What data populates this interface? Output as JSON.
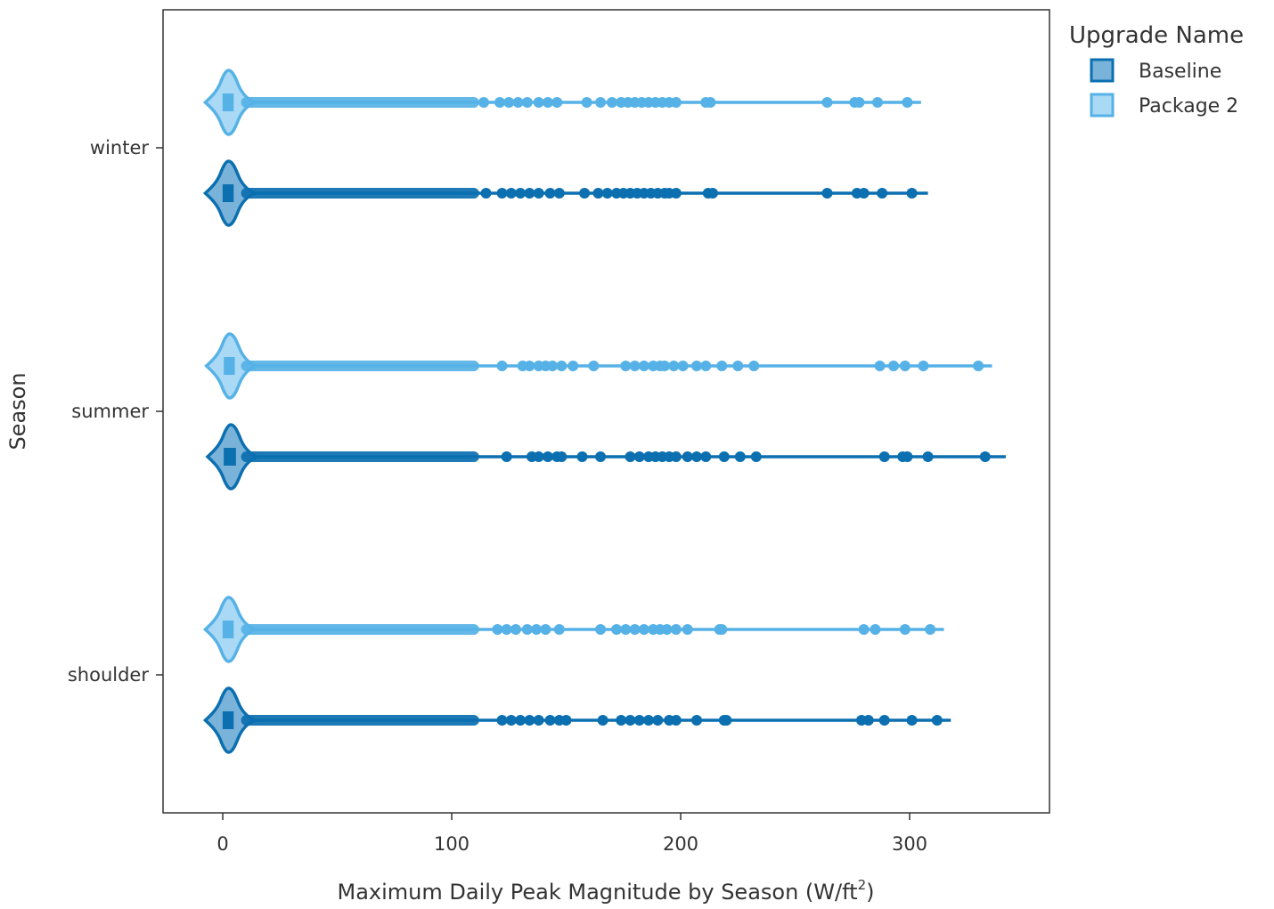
{
  "chart_data": {
    "type": "violin",
    "orientation": "horizontal",
    "title": "",
    "xlabel": "Maximum Daily Peak Magnitude by Season (W/ft",
    "xlabel_superscript": "2",
    "xlabel_suffix": ")",
    "ylabel": "Season",
    "xlim": [
      -25,
      360
    ],
    "x_ticks": [
      0,
      100,
      200,
      300
    ],
    "x_tick_labels": [
      "0",
      "100",
      "200",
      "300"
    ],
    "categories": [
      "winter",
      "summer",
      "shoulder"
    ],
    "grid": false,
    "legend": {
      "title": "Upgrade Name",
      "position": "right-top",
      "entries": [
        {
          "name": "Baseline",
          "color": "#0b6fb0",
          "fill": "#7ab3d9"
        },
        {
          "name": "Package 2",
          "color": "#56b2e6",
          "fill": "#a9d9f5"
        }
      ]
    },
    "series": [
      {
        "name": "Baseline",
        "color": "#0b6fb0",
        "fill": "#7ab3d9",
        "groups": [
          {
            "category": "winter",
            "min": 0,
            "q1": 1.5,
            "median": 2.5,
            "q3": 4,
            "max": 308,
            "outliers": [
              115,
              122,
              126,
              130,
              134,
              138,
              143,
              147,
              158,
              164,
              168,
              172,
              175,
              178,
              181,
              184,
              187,
              190,
              193,
              195,
              198,
              212,
              214,
              264,
              277,
              280,
              288,
              301
            ]
          },
          {
            "category": "summer",
            "min": 0,
            "q1": 2,
            "median": 3.5,
            "q3": 5,
            "max": 342,
            "outliers": [
              124,
              135,
              138,
              142,
              146,
              148,
              157,
              165,
              178,
              182,
              186,
              189,
              192,
              195,
              198,
              203,
              207,
              211,
              219,
              226,
              233,
              289,
              297,
              299,
              308,
              333
            ]
          },
          {
            "category": "shoulder",
            "min": 0,
            "q1": 1.5,
            "median": 2.5,
            "q3": 4,
            "max": 318,
            "outliers": [
              122,
              126,
              130,
              134,
              138,
              143,
              147,
              150,
              166,
              174,
              178,
              182,
              186,
              190,
              195,
              198,
              207,
              219,
              220,
              279,
              282,
              289,
              301,
              312
            ]
          }
        ]
      },
      {
        "name": "Package 2",
        "color": "#56b2e6",
        "fill": "#a9d9f5",
        "groups": [
          {
            "category": "winter",
            "min": 0,
            "q1": 1.5,
            "median": 2.5,
            "q3": 4,
            "max": 305,
            "outliers": [
              114,
              121,
              125,
              129,
              133,
              138,
              142,
              146,
              159,
              165,
              170,
              174,
              177,
              180,
              183,
              186,
              189,
              192,
              195,
              198,
              211,
              213,
              264,
              276,
              278,
              286,
              299
            ]
          },
          {
            "category": "summer",
            "min": 0,
            "q1": 2,
            "median": 3,
            "q3": 4.5,
            "max": 336,
            "outliers": [
              122,
              131,
              134,
              138,
              141,
              144,
              148,
              153,
              162,
              176,
              180,
              184,
              188,
              191,
              193,
              197,
              201,
              207,
              211,
              218,
              225,
              232,
              287,
              293,
              298,
              306,
              330
            ]
          },
          {
            "category": "shoulder",
            "min": 0,
            "q1": 1.5,
            "median": 2.5,
            "q3": 4,
            "max": 315,
            "outliers": [
              120,
              124,
              128,
              133,
              137,
              141,
              147,
              165,
              172,
              176,
              180,
              184,
              188,
              191,
              194,
              198,
              203,
              217,
              218,
              280,
              285,
              298,
              309
            ]
          }
        ]
      }
    ]
  }
}
